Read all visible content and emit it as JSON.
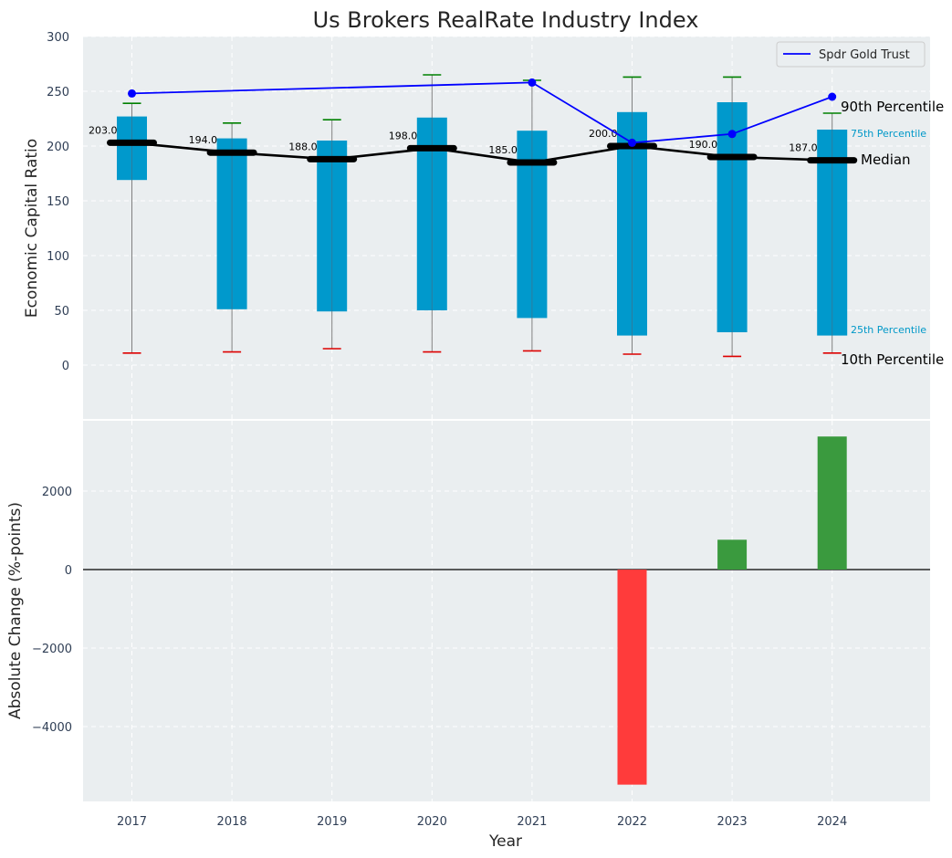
{
  "chart_data": {
    "type": "box",
    "title": "Us Brokers RealRate Industry Index",
    "xlabel": "Year",
    "categories": [
      "2017",
      "2018",
      "2019",
      "2020",
      "2021",
      "2022",
      "2023",
      "2024"
    ],
    "top_panel": {
      "ylabel": "Economic Capital Ratio",
      "ylim": [
        -45,
        300
      ],
      "yticks": [
        0,
        50,
        100,
        150,
        200,
        250,
        300
      ],
      "p10": [
        11,
        12,
        15,
        12,
        13,
        10,
        8,
        11
      ],
      "p25": [
        169,
        51,
        49,
        50,
        43,
        27,
        30,
        27
      ],
      "median": [
        203,
        194,
        188,
        198,
        185,
        200,
        190,
        187
      ],
      "median_labels": [
        "203.0",
        "194.0",
        "188.0",
        "198.0",
        "185.0",
        "200.0",
        "190.0",
        "187.0"
      ],
      "p75": [
        227,
        207,
        205,
        226,
        214,
        231,
        240,
        215
      ],
      "p90": [
        239,
        221,
        224,
        265,
        260,
        263,
        263,
        230
      ],
      "series": [
        {
          "name": "Spdr Gold Trust",
          "color": "#0000ff",
          "values": [
            248,
            null,
            null,
            null,
            258,
            203,
            211,
            245
          ]
        }
      ],
      "annotations": {
        "p90": "90th Percentile",
        "p75": "75th Percentile",
        "median": "Median",
        "p25": "25th Percentile",
        "p10": "10th Percentile"
      },
      "grid": true,
      "legend_position": "top-right"
    },
    "bottom_panel": {
      "ylabel": "Absolute Change (%-points)",
      "ylim": [
        -5900,
        3400
      ],
      "yticks": [
        2000,
        0,
        -2000,
        -4000
      ],
      "ytick_labels": [
        "2000",
        "0",
        "−2000",
        "−4000"
      ],
      "values": [
        null,
        null,
        null,
        null,
        null,
        -5480,
        760,
        3390
      ],
      "grid": true
    },
    "colors": {
      "box": "#0099cc",
      "median": "#000000",
      "p90_cap": "#008000",
      "p10_cap": "#dd0000",
      "positive": "#3a9a3e",
      "negative": "#ff3b3b",
      "panel_bg": "#eaeef0"
    }
  }
}
